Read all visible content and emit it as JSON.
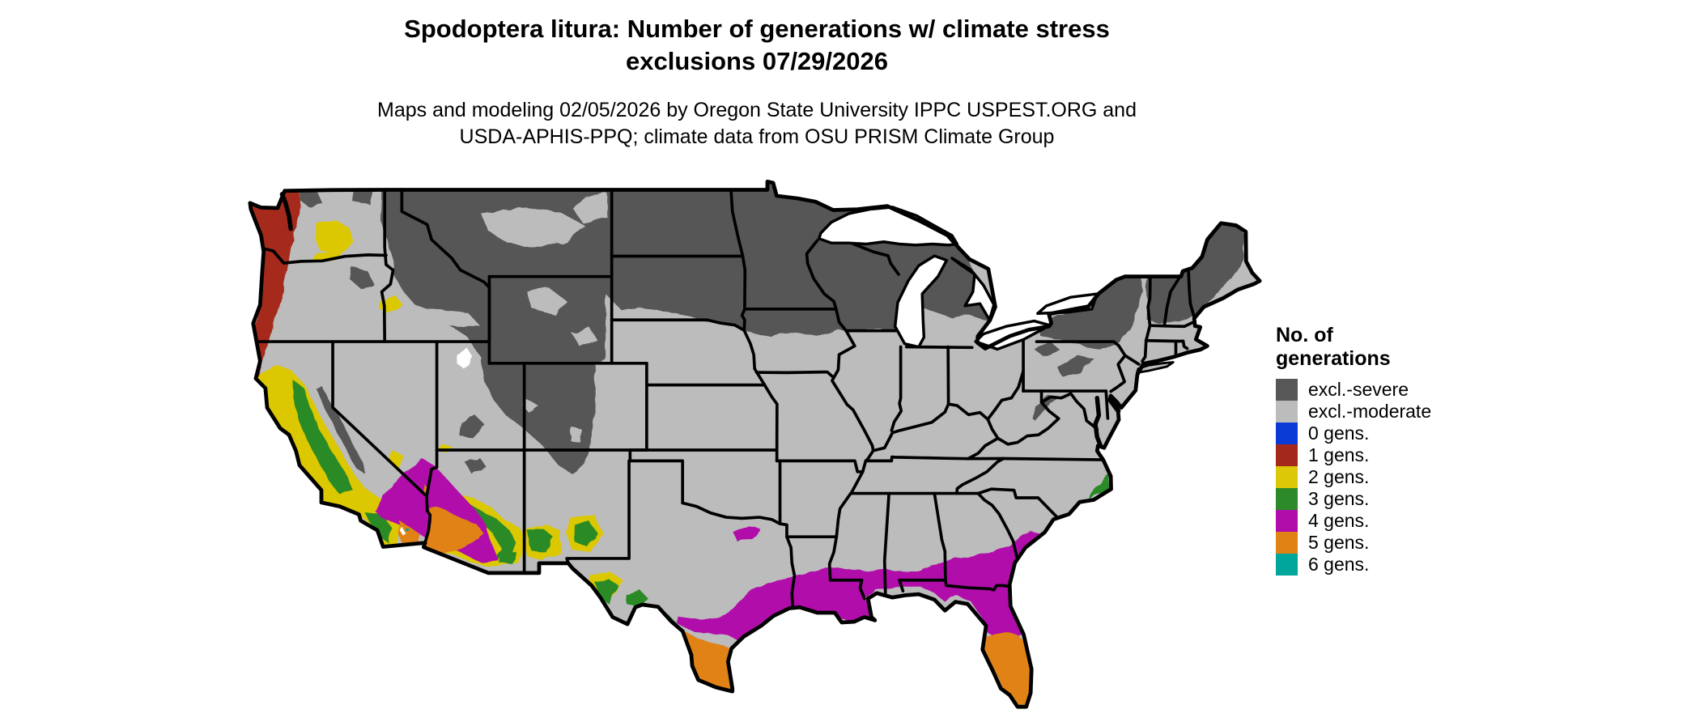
{
  "title": {
    "line1": "Spodoptera litura: Number of generations w/ climate stress",
    "line2": "exclusions 07/29/2026"
  },
  "subtitle": {
    "line1": "Maps and modeling 02/05/2026 by Oregon State University IPPC USPEST.ORG and",
    "line2": "USDA-APHIS-PPQ; climate data from OSU PRISM Climate Group"
  },
  "legend": {
    "title_line1": "No. of",
    "title_line2": "generations",
    "items": [
      {
        "key": "severe",
        "label": "excl.-severe",
        "color": "#575757"
      },
      {
        "key": "moderate",
        "label": "excl.-moderate",
        "color": "#bcbcbc"
      },
      {
        "key": "g0",
        "label": "0 gens.",
        "color": "#0b3bd6"
      },
      {
        "key": "g1",
        "label": "1 gens.",
        "color": "#a5291a"
      },
      {
        "key": "g2",
        "label": "2 gens.",
        "color": "#dcc806"
      },
      {
        "key": "g3",
        "label": "3 gens.",
        "color": "#2c8b28"
      },
      {
        "key": "g4",
        "label": "4 gens.",
        "color": "#b10daa"
      },
      {
        "key": "g5",
        "label": "5 gens.",
        "color": "#e08214"
      },
      {
        "key": "g6",
        "label": "6 gens.",
        "color": "#00a59b"
      }
    ]
  },
  "map": {
    "background": "#ffffff",
    "border_color": "#000000",
    "water_color": "#ffffff",
    "region": "Continental United States"
  }
}
